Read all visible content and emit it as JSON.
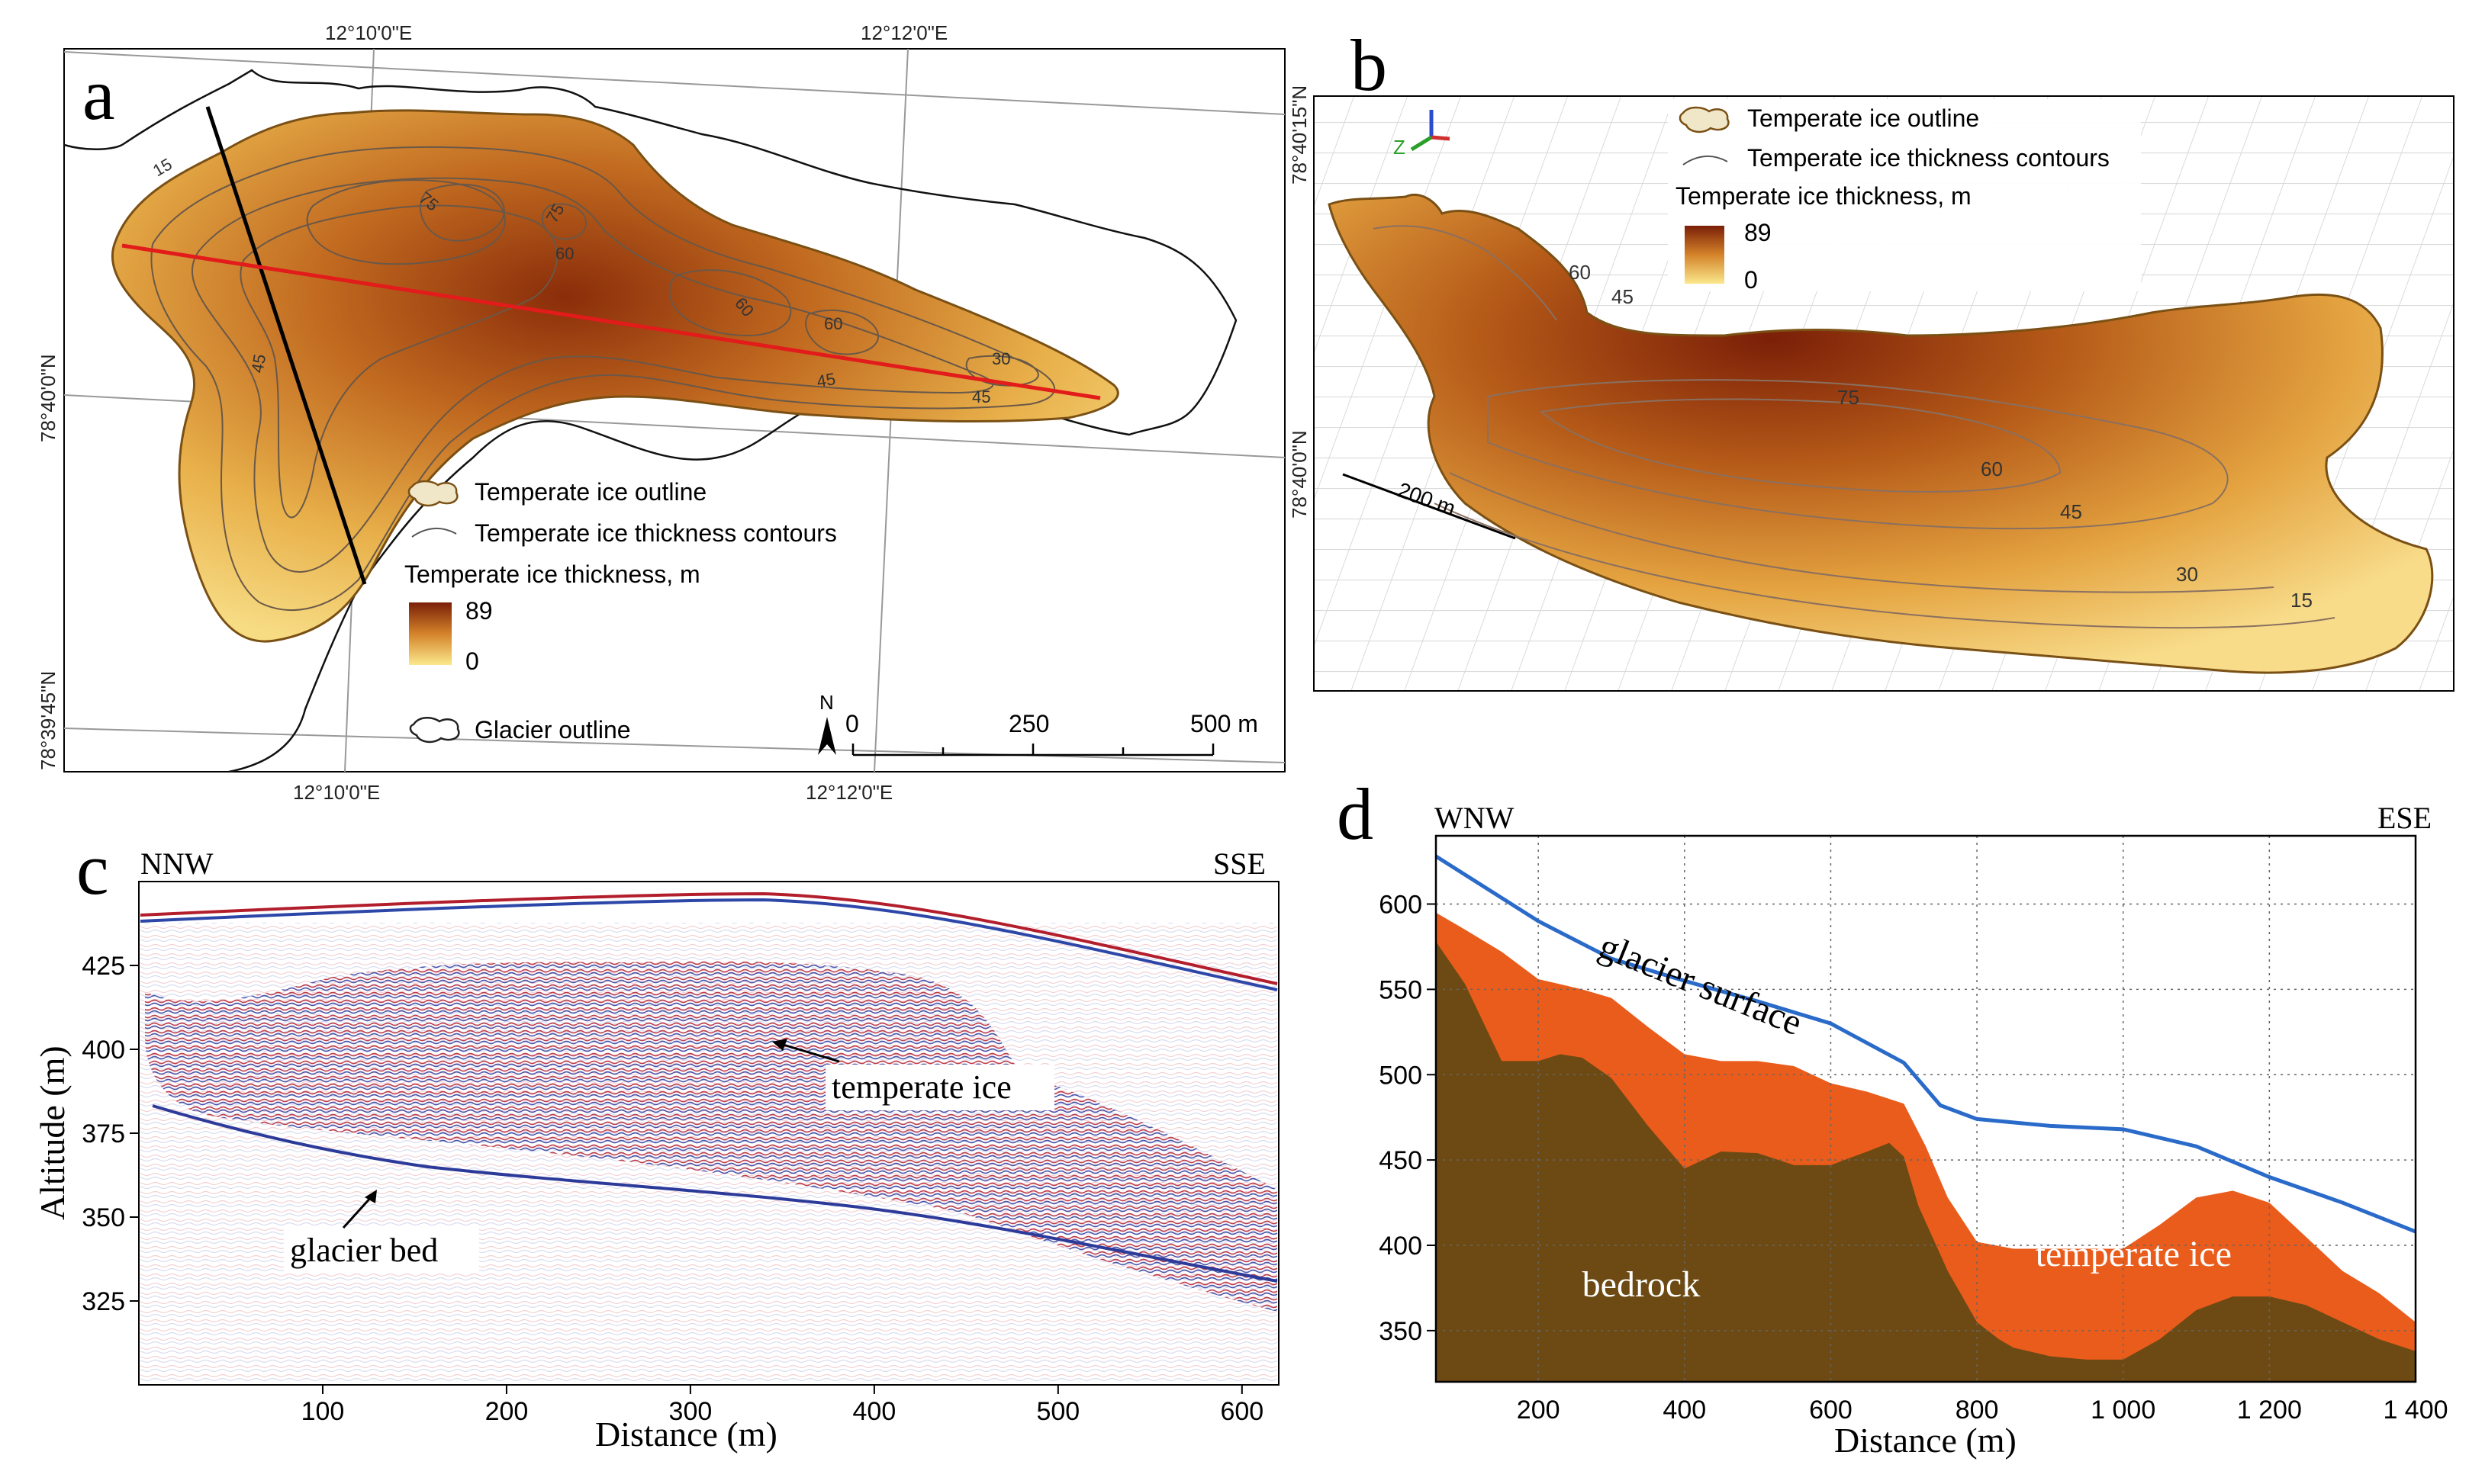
{
  "figure": {
    "panels": [
      {
        "id": "a",
        "letter": "a"
      },
      {
        "id": "b",
        "letter": "b"
      },
      {
        "id": "c",
        "letter": "c"
      },
      {
        "id": "d",
        "letter": "d"
      }
    ]
  },
  "panel_a": {
    "lon_labels_top": [
      "12°10'0\"E",
      "12°12'0\"E"
    ],
    "lon_labels_bottom": [
      "12°10'0\"E",
      "12°12'0\"E"
    ],
    "lat_labels": [
      "78°40'15\"N",
      "78°40'0\"N",
      "78°39'45\"N"
    ],
    "contour_labels": [
      "15",
      "75",
      "75",
      "60",
      "60",
      "60",
      "45",
      "45",
      "30",
      "45"
    ],
    "legend": {
      "outline": "Temperate ice outline",
      "contours": "Temperate ice thickness contours",
      "thickness_title": "Temperate ice thickness, m",
      "max": "89",
      "min": "0",
      "glacier_outline": "Glacier outline"
    },
    "north": "N",
    "scalebar": {
      "labels": [
        "0",
        "250",
        "500 m"
      ]
    }
  },
  "panel_b": {
    "legend": {
      "outline": "Temperate ice outline",
      "contours": "Temperate ice thickness contours",
      "thickness_title": "Temperate ice thickness, m",
      "max": "89",
      "min": "0"
    },
    "axes_labels": {
      "z": "Z"
    },
    "lat_labels": [
      "78°40'15\"N",
      "78°40'0\"N"
    ],
    "scale": "200 m",
    "contour_labels": [
      "60",
      "45",
      "75",
      "60",
      "45",
      "30",
      "15"
    ]
  },
  "chart_data": [
    {
      "type": "image",
      "panel": "c",
      "title": "",
      "left_label": "NNW",
      "right_label": "SSE",
      "xlabel": "Distance (m)",
      "ylabel": "Altitude (m)",
      "xticks": [
        100,
        200,
        300,
        400,
        500,
        600
      ],
      "yticks": [
        325,
        350,
        375,
        400,
        425
      ],
      "xlim": [
        0,
        620
      ],
      "ylim": [
        300,
        450
      ],
      "annotations": [
        "temperate ice",
        "glacier bed"
      ]
    },
    {
      "type": "area",
      "panel": "d",
      "left_label": "WNW",
      "right_label": "ESE",
      "xlabel": "Distance (m)",
      "ylabel": "",
      "xlim": [
        60,
        1400
      ],
      "ylim": [
        320,
        640
      ],
      "xticks": [
        "200",
        "400",
        "600",
        "800",
        "1 000",
        "1 200",
        "1 400"
      ],
      "yticks": [
        "350",
        "400",
        "450",
        "500",
        "550",
        "600"
      ],
      "grid": true,
      "series": [
        {
          "name": "glacier surface",
          "x": [
            60,
            200,
            300,
            400,
            500,
            600,
            700,
            750,
            800,
            900,
            1000,
            1100,
            1200,
            1300,
            1400
          ],
          "values": [
            628,
            590,
            568,
            555,
            543,
            530,
            507,
            482,
            474,
            470,
            468,
            458,
            440,
            425,
            408
          ]
        },
        {
          "name": "temperate ice",
          "x": [
            60,
            100,
            150,
            200,
            260,
            300,
            350,
            400,
            450,
            500,
            550,
            600,
            650,
            700,
            730,
            760,
            800,
            850,
            900,
            950,
            1000,
            1050,
            1100,
            1150,
            1200,
            1250,
            1300,
            1350,
            1400
          ],
          "values": [
            595,
            585,
            572,
            556,
            550,
            545,
            528,
            512,
            508,
            508,
            505,
            495,
            490,
            483,
            458,
            428,
            402,
            398,
            398,
            398,
            398,
            412,
            428,
            432,
            425,
            405,
            385,
            372,
            355
          ]
        },
        {
          "name": "bedrock",
          "x": [
            60,
            100,
            150,
            200,
            230,
            260,
            300,
            350,
            400,
            450,
            500,
            550,
            600,
            650,
            680,
            700,
            720,
            760,
            800,
            830,
            850,
            900,
            950,
            1000,
            1050,
            1100,
            1150,
            1200,
            1250,
            1300,
            1350,
            1400
          ],
          "values": [
            578,
            553,
            508,
            508,
            512,
            510,
            498,
            470,
            445,
            455,
            454,
            447,
            447,
            455,
            460,
            452,
            423,
            385,
            355,
            345,
            340,
            335,
            333,
            333,
            345,
            362,
            370,
            370,
            365,
            355,
            345,
            338
          ]
        }
      ],
      "annotations": [
        "glacier surface",
        "temperate ice",
        "bedrock"
      ],
      "colors": {
        "surface": "#2a6ac9",
        "temperate_ice": "#e95c1c",
        "bedrock": "#6d4a13"
      }
    }
  ]
}
